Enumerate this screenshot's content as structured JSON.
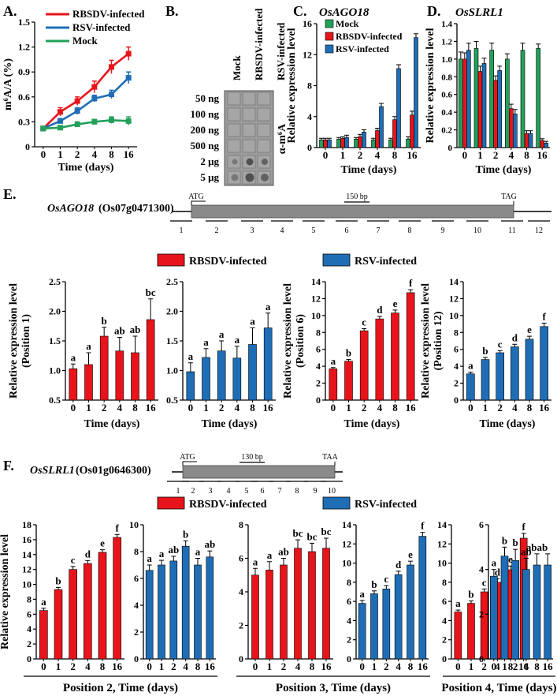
{
  "colors": {
    "red": "#e8141b",
    "blue": "#1f6db5",
    "green": "#22a05a",
    "gray": "#888888"
  },
  "panels": {
    "A": {
      "letter": "A.",
      "legend": [
        "RBSDV-infected",
        "RSV-infected",
        "Mock"
      ]
    },
    "B": {
      "letter": "B.",
      "col_labels": [
        "Mock",
        "RBSDV-infected",
        "RSV-infected"
      ],
      "row_labels": [
        "50 ng",
        "100 ng",
        "200 ng",
        "500 ng",
        "2 μg",
        "5 μg"
      ],
      "antibody": "α-m⁶A"
    },
    "C": {
      "letter": "C.",
      "gene": "OsAGO18",
      "legend": [
        "Mock",
        "RBSDV-infected",
        "RSV-infected"
      ]
    },
    "D": {
      "letter": "D.",
      "gene": "OsSLRL1"
    },
    "E": {
      "letter": "E.",
      "gene": "OsAGO18",
      "locus": "(Os07g0471300)",
      "start": "ATG",
      "stop": "TAG",
      "scale": "150 bp",
      "positions": [
        "1",
        "2",
        "3",
        "4",
        "5",
        "6",
        "7",
        "8",
        "9",
        "10",
        "11",
        "12"
      ],
      "legend": [
        "RBSDV-infected",
        "RSV-infected"
      ]
    },
    "F": {
      "letter": "F.",
      "gene": "OsSLRL1",
      "locus": "(Os01g0646300)",
      "start": "ATG",
      "stop": "TAA",
      "scale": "130 bp",
      "positions": [
        "1",
        "2",
        "3",
        "4",
        "5",
        "6",
        "7",
        "8",
        "9",
        "10"
      ],
      "legend": [
        "RBSDV-infected",
        "RSV-infected"
      ],
      "group_labels": [
        "Position 2, Time (days)",
        "Position 3, Time (days)",
        "Position 4, Time (days)"
      ]
    }
  },
  "chart_data": [
    {
      "id": "A",
      "type": "line",
      "xlabel": "Time (days)",
      "ylabel": "m⁶A/A (%)",
      "categories": [
        "0",
        "1",
        "2",
        "4",
        "8",
        "16"
      ],
      "ylim": [
        0,
        1.5
      ],
      "yticks": [
        "0",
        "0.3",
        "0.6",
        "0.9",
        "1.2",
        "1.5"
      ],
      "series": [
        {
          "name": "RBSDV-infected",
          "color": "red",
          "values": [
            0.22,
            0.42,
            0.55,
            0.72,
            0.96,
            1.12
          ],
          "errors": [
            0.02,
            0.05,
            0.05,
            0.07,
            0.08,
            0.08
          ]
        },
        {
          "name": "RSV-infected",
          "color": "blue",
          "values": [
            0.22,
            0.31,
            0.43,
            0.58,
            0.63,
            0.83
          ],
          "errors": [
            0.02,
            0.03,
            0.04,
            0.04,
            0.05,
            0.07
          ]
        },
        {
          "name": "Mock",
          "color": "green",
          "values": [
            0.22,
            0.23,
            0.27,
            0.3,
            0.32,
            0.31
          ],
          "errors": [
            0.02,
            0.02,
            0.03,
            0.03,
            0.04,
            0.05
          ]
        }
      ]
    },
    {
      "id": "C",
      "type": "bar",
      "xlabel": "Time (days)",
      "ylabel": "Relative expression level",
      "categories": [
        "0",
        "1",
        "2",
        "4",
        "8",
        "16"
      ],
      "ylim": [
        0,
        16
      ],
      "yticks": [
        "0",
        "4",
        "8",
        "12",
        "16"
      ],
      "series": [
        {
          "name": "Mock",
          "color": "green",
          "values": [
            1.0,
            1.1,
            1.1,
            1.0,
            1.0,
            1.1
          ],
          "errors": [
            0.2,
            0.2,
            0.2,
            0.2,
            0.2,
            0.3
          ]
        },
        {
          "name": "RBSDV-infected",
          "color": "red",
          "values": [
            1.0,
            1.2,
            1.4,
            2.2,
            3.6,
            4.2
          ],
          "errors": [
            0.2,
            0.2,
            0.3,
            0.3,
            0.4,
            0.5
          ]
        },
        {
          "name": "RSV-infected",
          "color": "blue",
          "values": [
            1.0,
            1.3,
            2.0,
            5.3,
            10.2,
            14.2
          ],
          "errors": [
            0.2,
            0.3,
            0.3,
            0.4,
            0.5,
            0.5
          ]
        }
      ]
    },
    {
      "id": "D",
      "type": "bar",
      "xlabel": "Time (days)",
      "ylabel": "Relative expression level",
      "categories": [
        "0",
        "1",
        "2",
        "4",
        "8",
        "16"
      ],
      "ylim": [
        0,
        1.4
      ],
      "yticks": [
        "0",
        "0.2",
        "0.4",
        "0.6",
        "0.8",
        "1.0",
        "1.2",
        "1.4"
      ],
      "series": [
        {
          "name": "Mock",
          "color": "green",
          "values": [
            1.0,
            1.12,
            1.1,
            1.0,
            1.1,
            1.12
          ],
          "errors": [
            0.08,
            0.08,
            0.08,
            0.06,
            0.08,
            0.05
          ]
        },
        {
          "name": "RBSDV-infected",
          "color": "red",
          "values": [
            1.0,
            0.86,
            0.76,
            0.44,
            0.16,
            0.08
          ],
          "errors": [
            0.07,
            0.06,
            0.05,
            0.05,
            0.03,
            0.02
          ]
        },
        {
          "name": "RSV-infected",
          "color": "blue",
          "values": [
            1.1,
            0.95,
            0.87,
            0.38,
            0.16,
            0.05
          ],
          "errors": [
            0.08,
            0.06,
            0.05,
            0.05,
            0.03,
            0.02
          ]
        }
      ]
    },
    {
      "id": "E1",
      "type": "bar",
      "xlabel": "Time (days)",
      "ylabel": "Relative expression level",
      "sublabel": "(Position 1)",
      "categories": [
        "0",
        "1",
        "2",
        "4",
        "8",
        "16"
      ],
      "ylim": [
        0.5,
        2.5
      ],
      "yticks": [
        "0.5",
        "1.0",
        "1.5",
        "2.0",
        "2.5"
      ],
      "series": [
        {
          "name": "RBSDV-infected",
          "color": "red",
          "values": [
            1.03,
            1.1,
            1.58,
            1.33,
            1.3,
            1.86
          ],
          "errors": [
            0.08,
            0.2,
            0.15,
            0.23,
            0.28,
            0.35
          ],
          "letters": [
            "a",
            "a",
            "b",
            "ab",
            "ab",
            "bc"
          ]
        }
      ]
    },
    {
      "id": "E2",
      "type": "bar",
      "xlabel": "Time (days)",
      "ylabel": "",
      "categories": [
        "0",
        "1",
        "2",
        "4",
        "8",
        "16"
      ],
      "ylim": [
        0.5,
        2.5
      ],
      "yticks": [
        "0.5",
        "1.0",
        "1.5",
        "2.0",
        "2.5"
      ],
      "series": [
        {
          "name": "RSV-infected",
          "color": "blue",
          "values": [
            0.98,
            1.22,
            1.33,
            1.21,
            1.44,
            1.72
          ],
          "errors": [
            0.15,
            0.15,
            0.17,
            0.2,
            0.28,
            0.25
          ],
          "letters": [
            "a",
            "a",
            "a",
            "a",
            "a",
            "a"
          ]
        }
      ]
    },
    {
      "id": "E3",
      "type": "bar",
      "xlabel": "Time (days)",
      "ylabel": "Relative expression level",
      "sublabel": "(Position 6)",
      "categories": [
        "0",
        "1",
        "2",
        "4",
        "8",
        "16"
      ],
      "ylim": [
        0,
        14
      ],
      "yticks": [
        "0",
        "2",
        "4",
        "6",
        "8",
        "10",
        "12",
        "14"
      ],
      "series": [
        {
          "name": "RBSDV-infected",
          "color": "red",
          "values": [
            3.7,
            4.6,
            8.2,
            9.6,
            10.3,
            12.7
          ],
          "errors": [
            0.15,
            0.2,
            0.25,
            0.3,
            0.35,
            0.35
          ],
          "letters": [
            "a",
            "b",
            "c",
            "d",
            "e",
            "f"
          ]
        }
      ]
    },
    {
      "id": "E4",
      "type": "bar",
      "xlabel": "Time (days)",
      "ylabel": "Relative expression level",
      "sublabel": "(Position 12)",
      "categories": [
        "0",
        "1",
        "2",
        "4",
        "8",
        "16"
      ],
      "ylim": [
        0,
        14
      ],
      "yticks": [
        "0",
        "2",
        "4",
        "6",
        "8",
        "10",
        "12",
        "14"
      ],
      "series": [
        {
          "name": "RSV-infected",
          "color": "blue",
          "values": [
            3.1,
            4.8,
            5.6,
            6.3,
            7.2,
            8.7
          ],
          "errors": [
            0.2,
            0.25,
            0.25,
            0.3,
            0.35,
            0.4
          ],
          "letters": [
            "a",
            "b",
            "c",
            "d",
            "e",
            "f"
          ]
        }
      ]
    },
    {
      "id": "F1",
      "type": "bar",
      "xlabel": "",
      "ylabel": "Relative expression level",
      "categories": [
        "0",
        "1",
        "2",
        "4",
        "8",
        "16"
      ],
      "ylim": [
        0,
        18
      ],
      "yticks": [
        "0",
        "2",
        "4",
        "6",
        "8",
        "10",
        "12",
        "14",
        "16",
        "18"
      ],
      "series": [
        {
          "name": "RBSDV-infected",
          "color": "red",
          "values": [
            6.5,
            9.3,
            12.0,
            12.8,
            14.3,
            16.3
          ],
          "errors": [
            0.3,
            0.3,
            0.4,
            0.4,
            0.35,
            0.4
          ],
          "letters": [
            "a",
            "b",
            "c",
            "d",
            "e",
            "f"
          ]
        }
      ]
    },
    {
      "id": "F2",
      "type": "bar",
      "xlabel": "",
      "ylabel": "",
      "categories": [
        "0",
        "1",
        "2",
        "4",
        "8",
        "16"
      ],
      "ylim": [
        0,
        10
      ],
      "yticks": [
        "0",
        "2",
        "4",
        "6",
        "8",
        "10"
      ],
      "series": [
        {
          "name": "RSV-infected",
          "color": "blue",
          "values": [
            6.6,
            7.0,
            7.3,
            8.4,
            7.0,
            7.6
          ],
          "errors": [
            0.4,
            0.35,
            0.35,
            0.4,
            0.5,
            0.45
          ],
          "letters": [
            "a",
            "a",
            "ab",
            "b",
            "a",
            "ab"
          ]
        }
      ]
    },
    {
      "id": "F3",
      "type": "bar",
      "xlabel": "",
      "ylabel": "",
      "categories": [
        "0",
        "1",
        "2",
        "4",
        "8",
        "16"
      ],
      "ylim": [
        0,
        8
      ],
      "yticks": [
        "0",
        "2",
        "4",
        "6",
        "8"
      ],
      "series": [
        {
          "name": "RBSDV-infected",
          "color": "red",
          "values": [
            5.0,
            5.3,
            5.6,
            6.6,
            6.4,
            6.6
          ],
          "errors": [
            0.4,
            0.5,
            0.4,
            0.5,
            0.5,
            0.6
          ],
          "letters": [
            "a",
            "a",
            "ab",
            "bc",
            "bc",
            "bc"
          ]
        }
      ]
    },
    {
      "id": "F4",
      "type": "bar",
      "xlabel": "",
      "ylabel": "",
      "categories": [
        "0",
        "1",
        "2",
        "4",
        "8",
        "16"
      ],
      "ylim": [
        0,
        14
      ],
      "yticks": [
        "0",
        "2",
        "4",
        "6",
        "8",
        "10",
        "12",
        "14"
      ],
      "series": [
        {
          "name": "RSV-infected",
          "color": "blue",
          "values": [
            5.8,
            6.8,
            7.3,
            8.8,
            9.8,
            12.8
          ],
          "errors": [
            0.3,
            0.3,
            0.35,
            0.35,
            0.4,
            0.4
          ],
          "letters": [
            "a",
            "b",
            "c",
            "d",
            "e",
            "f"
          ]
        }
      ]
    },
    {
      "id": "F5",
      "type": "bar",
      "xlabel": "",
      "ylabel": "",
      "categories": [
        "0",
        "1",
        "2",
        "4",
        "8",
        "16"
      ],
      "ylim": [
        0,
        14
      ],
      "yticks": [
        "0",
        "2",
        "4",
        "6",
        "8",
        "10",
        "12",
        "14"
      ],
      "series": [
        {
          "name": "RBSDV-infected",
          "color": "red",
          "values": [
            4.9,
            5.8,
            7.0,
            8.0,
            9.3,
            12.6
          ],
          "errors": [
            0.2,
            0.25,
            0.3,
            0.35,
            0.4,
            0.5
          ],
          "letters": [
            "a",
            "b",
            "c",
            "d",
            "e",
            "f"
          ]
        }
      ]
    },
    {
      "id": "F6",
      "type": "bar",
      "xlabel": "",
      "ylabel": "",
      "categories": [
        "0",
        "1",
        "2",
        "4",
        "8",
        "16"
      ],
      "ylim": [
        0,
        6
      ],
      "yticks": [
        "0",
        "2",
        "4",
        "6"
      ],
      "series": [
        {
          "name": "RSV-infected",
          "color": "blue",
          "values": [
            3.7,
            4.6,
            4.4,
            4.0,
            4.2,
            4.2
          ],
          "errors": [
            0.3,
            0.4,
            0.5,
            0.5,
            0.5,
            0.5
          ],
          "letters": [
            "a",
            "b",
            "b",
            "ab",
            "abab",
            ""
          ]
        }
      ]
    }
  ]
}
